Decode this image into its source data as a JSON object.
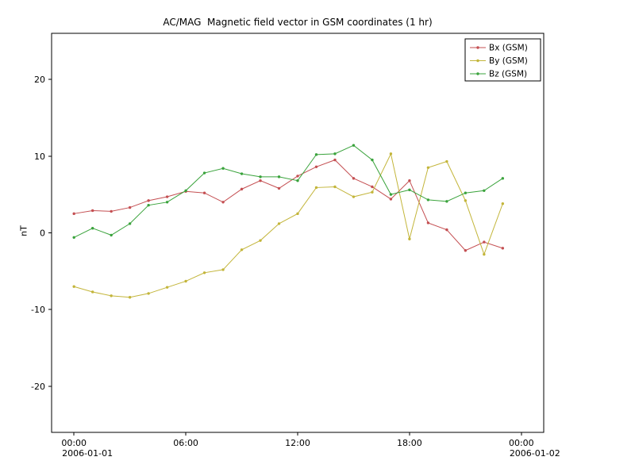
{
  "chart_data": {
    "type": "line",
    "title": "AC/MAG  Magnetic field vector in GSM coordinates (1 hr)",
    "xlabel": "",
    "ylabel": "nT",
    "grid": false,
    "legend_position": "top-right",
    "xlim": [
      -1.2,
      25.2
    ],
    "ylim": [
      -26,
      26
    ],
    "x_hours": [
      0,
      1,
      2,
      3,
      4,
      5,
      6,
      7,
      8,
      9,
      10,
      11,
      12,
      13,
      14,
      15,
      16,
      17,
      18,
      19,
      20,
      21,
      22,
      23
    ],
    "x_ticks": [
      {
        "hour": 0,
        "label": "00:00",
        "sublabel": "2006-01-01"
      },
      {
        "hour": 6,
        "label": "06:00"
      },
      {
        "hour": 12,
        "label": "12:00"
      },
      {
        "hour": 18,
        "label": "18:00"
      },
      {
        "hour": 24,
        "label": "00:00",
        "sublabel": "2006-01-02"
      }
    ],
    "y_ticks": [
      20,
      10,
      0,
      -10,
      -20
    ],
    "series": [
      {
        "name": "Bx (GSM)",
        "color": "#c44f52",
        "values": [
          2.5,
          2.9,
          2.8,
          3.3,
          4.2,
          4.7,
          5.4,
          5.2,
          4.0,
          5.7,
          6.8,
          5.8,
          7.4,
          8.6,
          9.5,
          7.1,
          6.0,
          4.4,
          6.8,
          1.3,
          0.4,
          -2.3,
          -1.2,
          -2.0
        ]
      },
      {
        "name": "By (GSM)",
        "color": "#c3b53a",
        "values": [
          -7.0,
          -7.7,
          -8.2,
          -8.4,
          -7.9,
          -7.1,
          -6.3,
          -5.2,
          -4.8,
          -2.2,
          -1.0,
          1.2,
          2.5,
          5.9,
          6.0,
          4.7,
          5.3,
          10.3,
          -0.8,
          8.5,
          9.3,
          4.2,
          -2.8,
          3.8
        ]
      },
      {
        "name": "Bz (GSM)",
        "color": "#3aa33c",
        "values": [
          -0.6,
          0.6,
          -0.3,
          1.2,
          3.6,
          4.0,
          5.5,
          7.8,
          8.4,
          7.7,
          7.3,
          7.3,
          6.8,
          10.2,
          10.3,
          11.4,
          9.5,
          5.0,
          5.6,
          4.3,
          4.1,
          5.2,
          5.5,
          7.1
        ]
      }
    ]
  }
}
